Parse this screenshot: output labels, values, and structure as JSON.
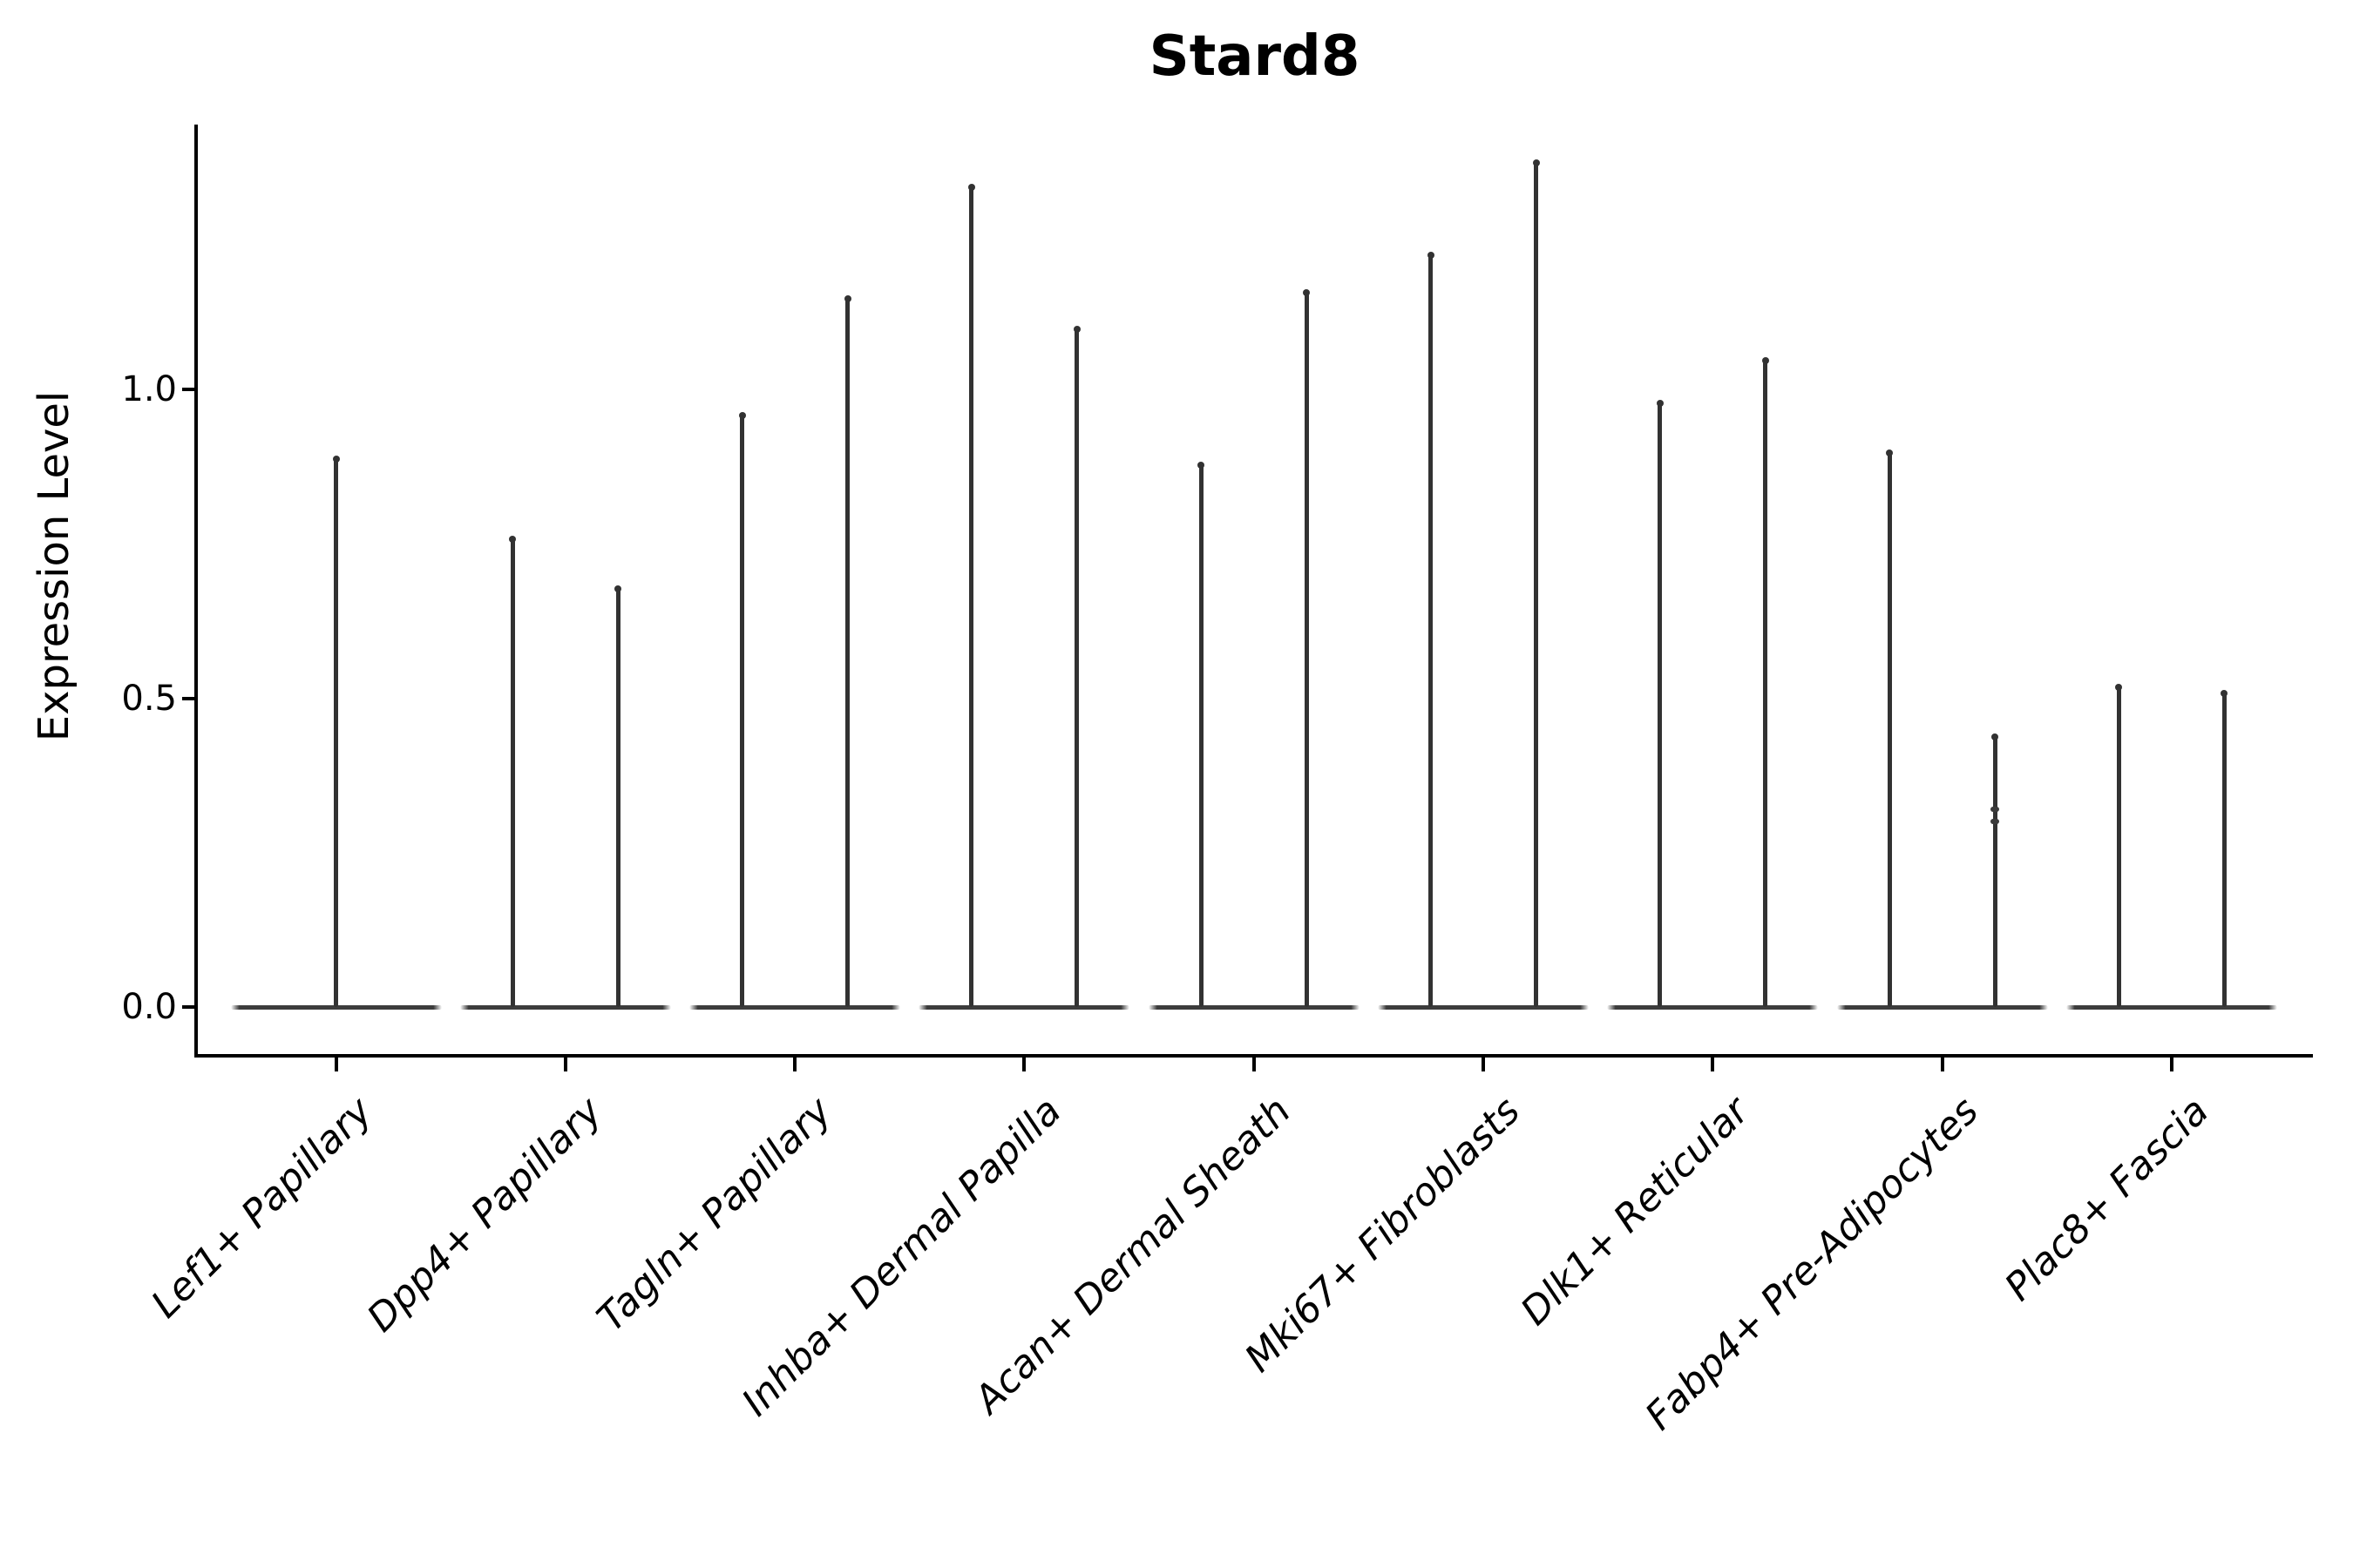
{
  "title": "Stard8",
  "y_axis": {
    "label": "Expression Level",
    "tick_labels": [
      "0.0",
      "0.5",
      "1.0"
    ],
    "tick_values": [
      0.0,
      0.5,
      1.0
    ]
  },
  "chart_data": {
    "type": "violin",
    "title": "Stard8",
    "xlabel": "",
    "ylabel": "Expression Level",
    "ylim": [
      0,
      1.43
    ],
    "yticks": [
      0.0,
      0.5,
      1.0
    ],
    "ytick_labels": [
      "0.0",
      "0.5",
      "1.0"
    ],
    "grid": false,
    "legend": "none",
    "note": "Violin plot of Stard8 expression; in every group nearly all density sits at 0 (violins collapse to a flat horizontal bar at y=0) with thin vertical tails rising to the listed maxima. The first group shows one centered tail; all other groups show two side-by-side violins (two tails).",
    "categories": [
      "Lef1+ Papillary",
      "Dpp4+ Papillary",
      "Tagln+ Papillary",
      "Inhba+ Dermal Papilla",
      "Acan+ Dermal Sheath",
      "Mki67+ Fibroblasts",
      "Dlk1+ Reticular",
      "Fabp4+ Pre-Adipocytes",
      "Plac8+ Fascia"
    ],
    "violins": [
      {
        "category": "Lef1+ Papillary",
        "tails": [
          0.89
        ]
      },
      {
        "category": "Dpp4+ Papillary",
        "tails": [
          0.76,
          0.68
        ]
      },
      {
        "category": "Tagln+ Papillary",
        "tails": [
          0.96,
          1.15
        ]
      },
      {
        "category": "Inhba+ Dermal Papilla",
        "tails": [
          1.33,
          1.1
        ]
      },
      {
        "category": "Acan+ Dermal Sheath",
        "tails": [
          0.88,
          1.16
        ]
      },
      {
        "category": "Mki67+ Fibroblasts",
        "tails": [
          1.22,
          1.37
        ]
      },
      {
        "category": "Dlk1+ Reticular",
        "tails": [
          0.98,
          1.05
        ]
      },
      {
        "category": "Fabp4+ Pre-Adipocytes",
        "tails": [
          0.9,
          0.44
        ],
        "knots": {
          "tail_index": 1,
          "values": [
            0.3,
            0.32
          ]
        }
      },
      {
        "category": "Plac8+ Fascia",
        "tails": [
          0.52,
          0.51
        ]
      }
    ],
    "colors": {
      "violin": "#323232",
      "axis": "#000000",
      "background": "#ffffff"
    }
  }
}
